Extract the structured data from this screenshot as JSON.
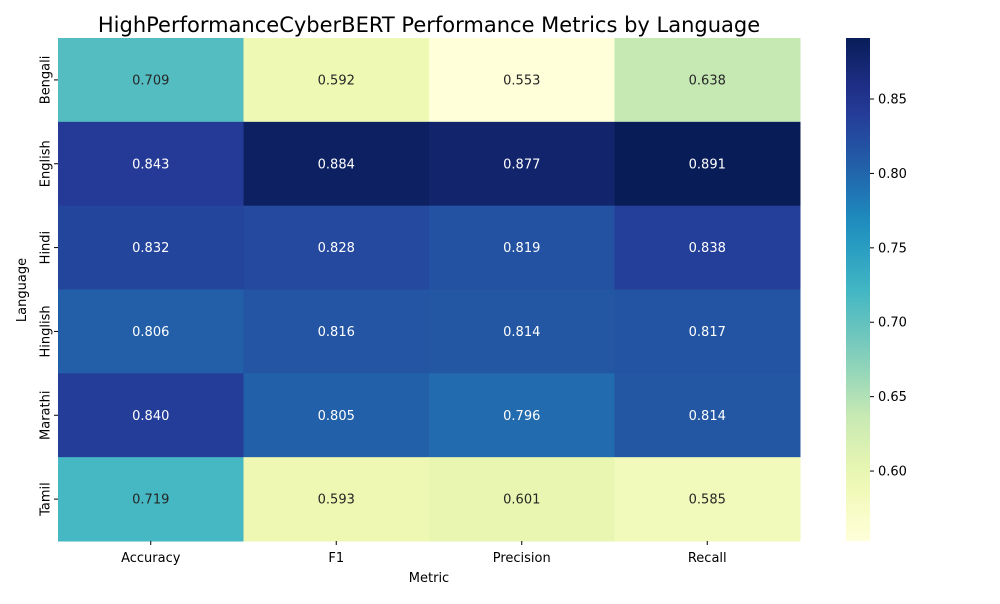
{
  "chart_data": {
    "type": "heatmap",
    "title": "HighPerformanceCyberBERT Performance Metrics by Language",
    "xlabel": "Metric",
    "ylabel": "Language",
    "x_categories": [
      "Accuracy",
      "F1",
      "Precision",
      "Recall"
    ],
    "y_categories": [
      "Bengali",
      "English",
      "Hindi",
      "Hinglish",
      "Marathi",
      "Tamil"
    ],
    "values": [
      [
        0.709,
        0.592,
        0.553,
        0.638
      ],
      [
        0.843,
        0.884,
        0.877,
        0.891
      ],
      [
        0.832,
        0.828,
        0.819,
        0.838
      ],
      [
        0.806,
        0.816,
        0.814,
        0.817
      ],
      [
        0.84,
        0.805,
        0.796,
        0.814
      ],
      [
        0.719,
        0.593,
        0.601,
        0.585
      ]
    ],
    "value_labels": [
      [
        "0.709",
        "0.592",
        "0.553",
        "0.638"
      ],
      [
        "0.843",
        "0.884",
        "0.877",
        "0.891"
      ],
      [
        "0.832",
        "0.828",
        "0.819",
        "0.838"
      ],
      [
        "0.806",
        "0.816",
        "0.814",
        "0.817"
      ],
      [
        "0.840",
        "0.805",
        "0.796",
        "0.814"
      ],
      [
        "0.719",
        "0.593",
        "0.601",
        "0.585"
      ]
    ],
    "colormap": "YlGnBu",
    "color_range": [
      0.553,
      0.891
    ],
    "colorbar_ticks": [
      "0.60",
      "0.65",
      "0.70",
      "0.75",
      "0.80",
      "0.85"
    ],
    "colorbar_tick_values": [
      0.6,
      0.65,
      0.7,
      0.75,
      0.8,
      0.85
    ]
  }
}
